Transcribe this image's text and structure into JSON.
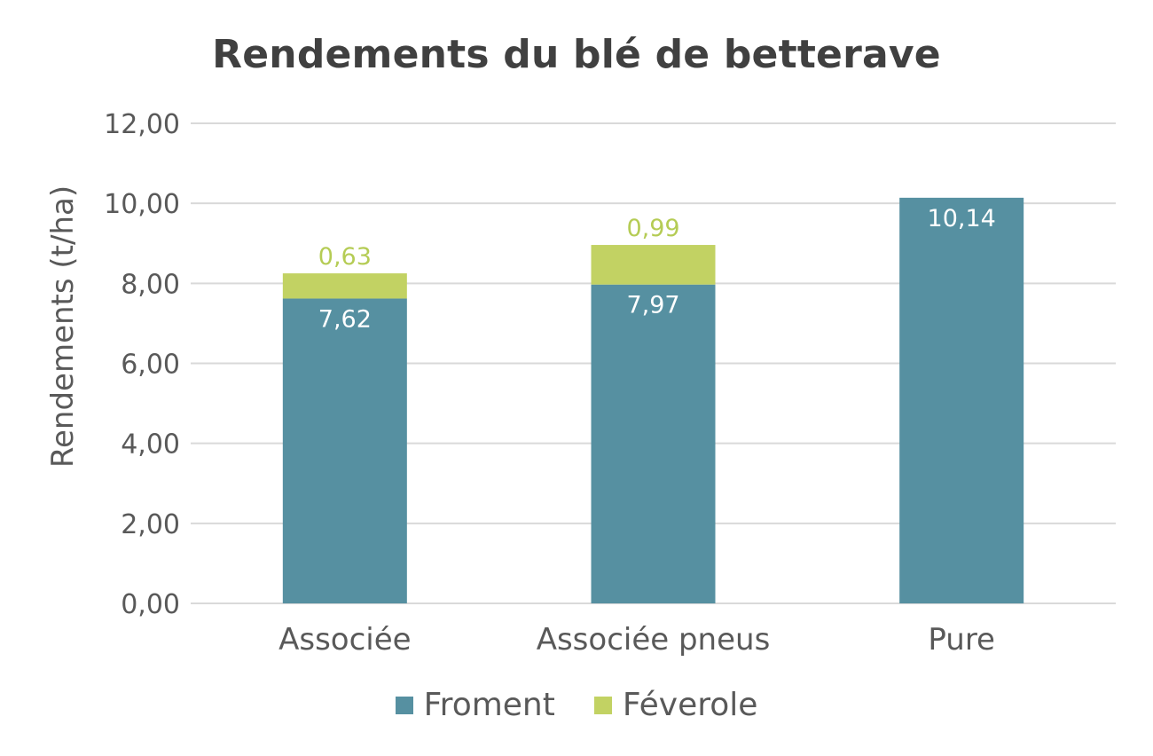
{
  "chart_data": {
    "type": "bar",
    "stacked": true,
    "title": "Rendements du blé de betterave",
    "ylabel": "Rendements (t/ha)",
    "xlabel": "",
    "ylim": [
      0,
      12
    ],
    "yticks": [
      "0,00",
      "2,00",
      "4,00",
      "6,00",
      "8,00",
      "10,00",
      "12,00"
    ],
    "categories": [
      "Associée",
      "Associée pneus",
      "Pure"
    ],
    "series": [
      {
        "name": "Froment",
        "color": "#5690a1",
        "label_color": "#ffffff",
        "values": [
          7.62,
          7.97,
          10.14
        ],
        "labels": [
          "7,62",
          "7,97",
          "10,14"
        ]
      },
      {
        "name": "Féverole",
        "color": "#c2d263",
        "label_color": "#b5cc55",
        "values": [
          0.63,
          0.99,
          0
        ],
        "labels": [
          "0,63",
          "0,99",
          ""
        ]
      }
    ],
    "grid": true,
    "legend_position": "bottom"
  }
}
